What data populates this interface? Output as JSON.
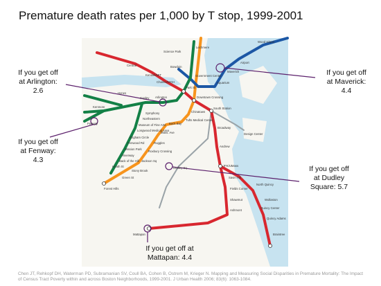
{
  "title": "Premature death rates per 1,000 by T stop, 1999-2001",
  "callouts": [
    {
      "lines": [
        "If you get off",
        "at Arlington:",
        "2.6"
      ]
    },
    {
      "lines": [
        "If you get off",
        "at Fenway:",
        "4.3"
      ]
    },
    {
      "lines": [
        "If you get off",
        "at Maverick:",
        "4.4"
      ]
    },
    {
      "lines": [
        "If you get off",
        "at Dudley",
        "Square: 5.7"
      ]
    },
    {
      "lines": [
        "If you get off at",
        "Mattapan: 4.4"
      ]
    }
  ],
  "map_labels": [
    "Science Park",
    "Lechmere",
    "Central",
    "Kendall/MIT",
    "Charles/MGH",
    "Bowdoin",
    "Government Center",
    "Park St",
    "Downtown Crossing",
    "Aquarium",
    "Maverick",
    "Airport",
    "Wood Island",
    "Arlington",
    "Copley",
    "Hynes",
    "Kenmore",
    "Fenway",
    "Symphony",
    "Northeastern",
    "Museum of Fine Arts",
    "Longwood Medical Area",
    "Brigham Circle",
    "Fenwood Rd",
    "Mission Park",
    "Riverway",
    "Back of the Hill",
    "Heath St",
    "Back Bay",
    "Mass. Ave",
    "Ruggles",
    "Roxbury Crossing",
    "Jackson Sq",
    "Stony Brook",
    "Green St",
    "Forest Hills",
    "Chinatown",
    "Tufts Medical Center",
    "South Station",
    "Broadway",
    "Andrew",
    "JFK/UMass",
    "Savin Hill",
    "Fields Corner",
    "Shawmut",
    "Ashmont",
    "North Quincy",
    "Wollaston",
    "Quincy Center",
    "Quincy Adams",
    "Braintree",
    "Mattapan",
    "Dudley Sq",
    "Design Center"
  ],
  "citation": "Chen JT, Rehkopf DH, Waterman PD, Subramanian SV, Coull BA, Cohen B, Ostrem M, Krieger N. Mapping and Measuring Social Disparities in Premature Mortality: The Impact of Census Tract Poverty within and across Boston Neighborhoods, 1999-2001. J Urban Health 2006; 83(6): 1063-1084."
}
